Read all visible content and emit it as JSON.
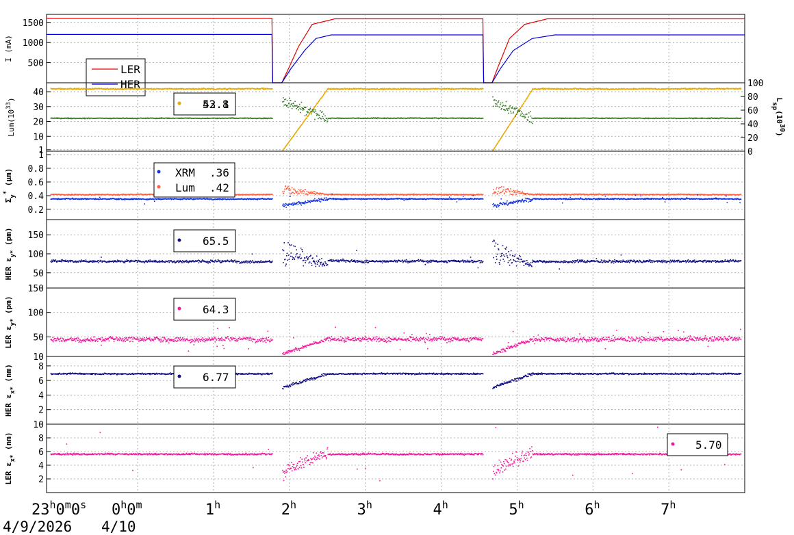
{
  "colors": {
    "ler": "#e00000",
    "her": "#0000e0",
    "lum": "#e8a800",
    "lsp": "#3a7a2a",
    "xrm": "#1030e0",
    "lumsize": "#ff6040",
    "navy": "#101080",
    "pink": "#f0189a"
  },
  "x_axis": {
    "ticks": [
      {
        "h": "23",
        "hs": "h",
        "m": "0",
        "ms": "m",
        "s": "0",
        "ss": "s",
        "hour": -1
      },
      {
        "h": "0",
        "hs": "h",
        "m": "0",
        "ms": "m",
        "s": "",
        "ss": "",
        "hour": 0
      },
      {
        "h": "1",
        "hs": "h",
        "m": "",
        "ms": "",
        "s": "",
        "ss": "",
        "hour": 1
      },
      {
        "h": "2",
        "hs": "h",
        "m": "",
        "ms": "",
        "s": "",
        "ss": "",
        "hour": 2
      },
      {
        "h": "3",
        "hs": "h",
        "m": "",
        "ms": "",
        "s": "",
        "ss": "",
        "hour": 3
      },
      {
        "h": "4",
        "hs": "h",
        "m": "",
        "ms": "",
        "s": "",
        "ss": "",
        "hour": 4
      },
      {
        "h": "5",
        "hs": "h",
        "m": "",
        "ms": "",
        "s": "",
        "ss": "",
        "hour": 5
      },
      {
        "h": "6",
        "hs": "h",
        "m": "",
        "ms": "",
        "s": "",
        "ss": "",
        "hour": 6
      },
      {
        "h": "7",
        "hs": "h",
        "m": "",
        "ms": "",
        "s": "",
        "ss": "",
        "hour": 7
      }
    ],
    "date1": "4/9/2026",
    "date2": "4/10",
    "range_hours": [
      -1.2,
      8.0
    ]
  },
  "chart_data": [
    {
      "type": "line",
      "panel": "current",
      "ylabel": "I (mA)",
      "yticks": [
        "500",
        "1000",
        "1500"
      ],
      "ylim": [
        0,
        1700
      ],
      "series": [
        {
          "name": "LER",
          "keypoints": [
            [
              -1.2,
              1600
            ],
            [
              1.77,
              1600
            ],
            [
              1.78,
              0
            ],
            [
              1.9,
              0
            ],
            [
              2.0,
              400
            ],
            [
              2.12,
              900
            ],
            [
              2.3,
              1450
            ],
            [
              2.6,
              1590
            ],
            [
              4.55,
              1590
            ],
            [
              4.56,
              0
            ],
            [
              4.67,
              0
            ],
            [
              4.75,
              400
            ],
            [
              4.9,
              1100
            ],
            [
              5.1,
              1450
            ],
            [
              5.4,
              1590
            ],
            [
              8.0,
              1590
            ]
          ]
        },
        {
          "name": "HER",
          "keypoints": [
            [
              -1.2,
              1200
            ],
            [
              1.77,
              1200
            ],
            [
              1.78,
              0
            ],
            [
              1.9,
              0
            ],
            [
              2.02,
              350
            ],
            [
              2.2,
              800
            ],
            [
              2.35,
              1100
            ],
            [
              2.55,
              1190
            ],
            [
              4.55,
              1190
            ],
            [
              4.56,
              0
            ],
            [
              4.67,
              0
            ],
            [
              4.78,
              350
            ],
            [
              4.95,
              800
            ],
            [
              5.2,
              1100
            ],
            [
              5.5,
              1190
            ],
            [
              8.0,
              1190
            ]
          ]
        }
      ],
      "legend": [
        "LER",
        "HER"
      ]
    },
    {
      "type": "scatter",
      "panel": "luminosity",
      "ylabel": "Lum(10",
      "ylabel_sup": "33",
      "ylabel_end": ")",
      "yticks": [
        "1",
        "10",
        "20",
        "30",
        "40"
      ],
      "ylim": [
        0,
        46
      ],
      "y2label": "L",
      "y2label_sub": "sp",
      "y2label_mid": "(10",
      "y2label_sup": "30",
      "y2label_end": ")",
      "y2ticks": [
        "0",
        "20",
        "40",
        "60",
        "80",
        "100"
      ],
      "y2lim": [
        0,
        100
      ],
      "series": [
        {
          "name": "Lum",
          "level": 41.5
        },
        {
          "name": "Lsp",
          "level": 48
        }
      ],
      "legend_value": "52.1",
      "legend_value2": "43.8"
    },
    {
      "type": "scatter",
      "panel": "beamsize",
      "ylabel": "Σ",
      "ylabel_sub": "y",
      "ylabel_sup": "*",
      "ylabel_unit": " (μm)",
      "yticks": [
        "0.2",
        "0.4",
        "0.6",
        "0.8",
        "1"
      ],
      "ylim": [
        0.05,
        1.05
      ],
      "series": [
        {
          "name": "XRM",
          "level": 0.35
        },
        {
          "name": "Lum",
          "level": 0.41
        }
      ],
      "legend": [
        {
          "label": "XRM",
          "value": ".36"
        },
        {
          "label": "Lum",
          "value": ".42"
        }
      ]
    },
    {
      "type": "scatter",
      "panel": "her_eps_y",
      "ylabel": "HER ε",
      "ylabel_sub": "y*",
      "ylabel_unit": " (pm)",
      "yticks": [
        "50",
        "100",
        "150"
      ],
      "ylim": [
        10,
        190
      ],
      "series": [
        {
          "name": "HER",
          "level": 80
        }
      ],
      "legend_value": "65.5"
    },
    {
      "type": "scatter",
      "panel": "ler_eps_y",
      "ylabel": "LER ε",
      "ylabel_sub": "y*",
      "ylabel_unit": " (pm)",
      "yticks": [
        "10",
        "50",
        "100",
        "150"
      ],
      "ylim": [
        10,
        150
      ],
      "series": [
        {
          "name": "LER",
          "level": 45
        }
      ],
      "legend_value": "64.3"
    },
    {
      "type": "scatter",
      "panel": "her_eps_x",
      "ylabel": "HER ε",
      "ylabel_sub": "x*",
      "ylabel_unit": " (nm)",
      "yticks": [
        "2",
        "4",
        "6",
        "8"
      ],
      "ylim": [
        0,
        9.3
      ],
      "series": [
        {
          "name": "HER",
          "level": 6.9
        }
      ],
      "legend_value": "6.77"
    },
    {
      "type": "scatter",
      "panel": "ler_eps_x",
      "ylabel": "LER ε",
      "ylabel_sub": "x*",
      "ylabel_unit": " (nm)",
      "yticks": [
        "2",
        "4",
        "6",
        "8",
        "10"
      ],
      "ylim": [
        0,
        10
      ],
      "series": [
        {
          "name": "LER",
          "level": 5.6
        }
      ],
      "legend_value": "5.70"
    }
  ]
}
